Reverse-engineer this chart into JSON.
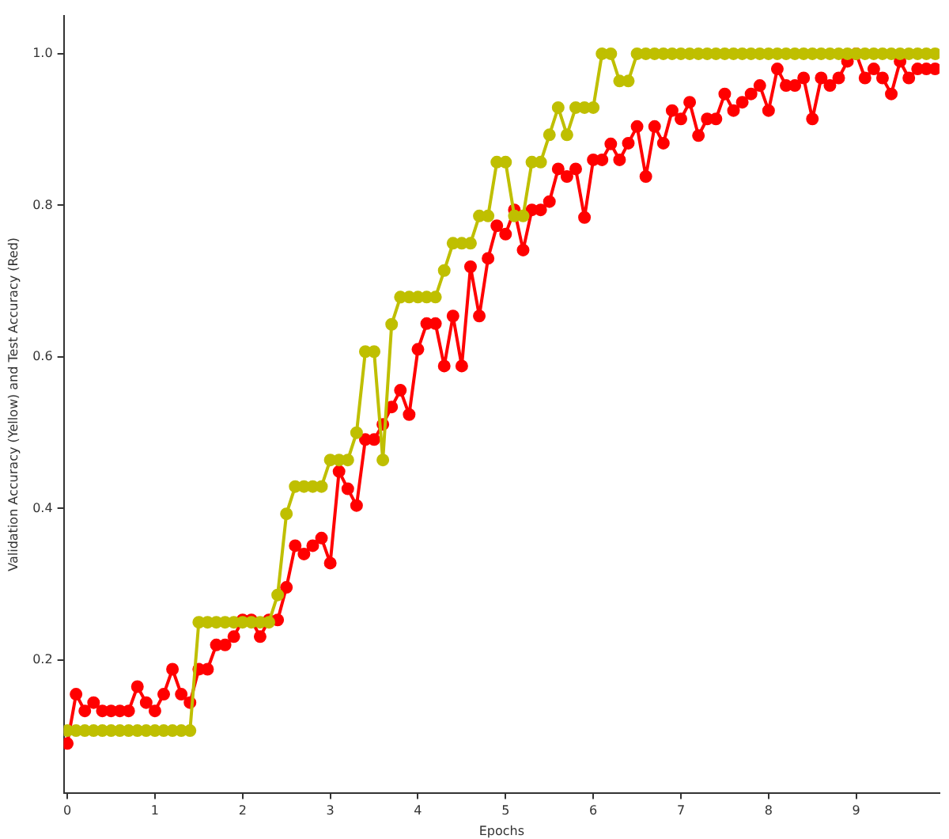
{
  "chart_data": {
    "type": "line",
    "xlabel": "Epochs",
    "ylabel": "Validation Accuracy (Yellow) and Test Accuracy (Red)",
    "x": [
      0,
      0.1,
      0.2,
      0.3,
      0.4,
      0.5,
      0.6,
      0.7,
      0.8,
      0.9,
      1,
      1.1,
      1.2,
      1.3,
      1.4,
      1.5,
      1.6,
      1.7,
      1.8,
      1.9,
      2,
      2.1,
      2.2,
      2.3,
      2.4,
      2.5,
      2.6,
      2.7,
      2.8,
      2.9,
      3,
      3.1,
      3.2,
      3.3,
      3.4,
      3.5,
      3.6,
      3.7,
      3.8,
      3.9,
      4,
      4.1,
      4.2,
      4.3,
      4.4,
      4.5,
      4.6,
      4.7,
      4.8,
      4.9,
      5,
      5.1,
      5.2,
      5.3,
      5.4,
      5.5,
      5.6,
      5.7,
      5.8,
      5.9,
      6,
      6.1,
      6.2,
      6.3,
      6.4,
      6.5,
      6.6,
      6.7,
      6.8,
      6.9,
      7,
      7.1,
      7.2,
      7.3,
      7.4,
      7.5,
      7.6,
      7.7,
      7.8,
      7.9,
      8,
      8.1,
      8.2,
      8.3,
      8.4,
      8.5,
      8.6,
      8.7,
      8.8,
      8.9,
      9,
      9.1,
      9.2,
      9.3,
      9.4,
      9.5,
      9.6,
      9.7,
      9.8,
      9.9
    ],
    "series": [
      {
        "color": "#bfbf00",
        "values": [
          0.107,
          0.107,
          0.107,
          0.107,
          0.107,
          0.107,
          0.107,
          0.107,
          0.107,
          0.107,
          0.107,
          0.107,
          0.107,
          0.107,
          0.107,
          0.25,
          0.25,
          0.25,
          0.25,
          0.25,
          0.25,
          0.25,
          0.25,
          0.25,
          0.286,
          0.393,
          0.429,
          0.429,
          0.429,
          0.429,
          0.464,
          0.464,
          0.464,
          0.5,
          0.607,
          0.607,
          0.464,
          0.643,
          0.679,
          0.679,
          0.679,
          0.679,
          0.679,
          0.714,
          0.75,
          0.75,
          0.75,
          0.786,
          0.786,
          0.857,
          0.857,
          0.786,
          0.786,
          0.857,
          0.857,
          0.893,
          0.929,
          0.893,
          0.929,
          0.929,
          0.929,
          1,
          1,
          0.964,
          0.964,
          1,
          1,
          1,
          1,
          1,
          1,
          1,
          1,
          1,
          1,
          1,
          1,
          1,
          1,
          1,
          1,
          1,
          1,
          1,
          1,
          1,
          1,
          1,
          1,
          1,
          1,
          1,
          1,
          1,
          1,
          1,
          1,
          1,
          1,
          1
        ]
      },
      {
        "color": "#ff0000",
        "values": [
          0.09,
          0.155,
          0.133,
          0.144,
          0.133,
          0.133,
          0.133,
          0.133,
          0.165,
          0.144,
          0.133,
          0.155,
          0.188,
          0.155,
          0.144,
          0.188,
          0.188,
          0.22,
          0.22,
          0.231,
          0.253,
          0.253,
          0.231,
          0.253,
          0.253,
          0.296,
          0.351,
          0.34,
          0.351,
          0.361,
          0.328,
          0.449,
          0.426,
          0.404,
          0.491,
          0.491,
          0.511,
          0.534,
          0.556,
          0.524,
          0.61,
          0.644,
          0.644,
          0.588,
          0.654,
          0.588,
          0.719,
          0.654,
          0.73,
          0.773,
          0.762,
          0.794,
          0.741,
          0.794,
          0.794,
          0.805,
          0.848,
          0.838,
          0.848,
          0.784,
          0.86,
          0.86,
          0.881,
          0.86,
          0.882,
          0.904,
          0.838,
          0.904,
          0.882,
          0.925,
          0.914,
          0.936,
          0.892,
          0.914,
          0.914,
          0.947,
          0.925,
          0.936,
          0.947,
          0.958,
          0.925,
          0.98,
          0.958,
          0.958,
          0.968,
          0.914,
          0.968,
          0.958,
          0.968,
          0.99,
          1,
          0.968,
          0.98,
          0.968,
          0.947,
          0.99,
          0.968,
          0.98,
          0.98,
          0.98
        ]
      }
    ],
    "xlim": [
      -0.04,
      9.95
    ],
    "xticks": [
      0,
      1,
      2,
      3,
      4,
      5,
      6,
      7,
      8,
      9
    ],
    "ylim": [
      0.025,
      1.05
    ],
    "yticks": [
      0.2,
      0.4,
      0.6,
      0.8,
      {
        "value": 1,
        "label": "1.0"
      }
    ],
    "grid": false,
    "legend": false,
    "marker": "circle",
    "line_style": "solid"
  }
}
